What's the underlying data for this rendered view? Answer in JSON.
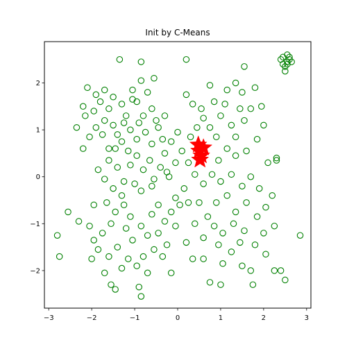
{
  "chart_data": {
    "type": "scatter",
    "title": "Init by C-Means",
    "xlabel": "",
    "ylabel": "",
    "xlim": [
      -3.1,
      3.1
    ],
    "ylim": [
      -2.8,
      2.88
    ],
    "xticks": [
      -3,
      -2,
      -1,
      0,
      1,
      2,
      3
    ],
    "yticks": [
      -2,
      -1,
      0,
      1,
      2
    ],
    "grid": false,
    "colors": {
      "points": "#008000",
      "centers": "#ff0000"
    },
    "series": [
      {
        "marker": "open-circle",
        "points": [
          [
            -2.1,
            1.9
          ],
          [
            -1.9,
            1.75
          ],
          [
            -1.8,
            1.6
          ],
          [
            -2.2,
            1.5
          ],
          [
            -2.35,
            1.05
          ],
          [
            -2.2,
            0.6
          ],
          [
            -2.15,
            1.3
          ],
          [
            -1.95,
            1.4
          ],
          [
            -1.7,
            1.2
          ],
          [
            -1.6,
            1.45
          ],
          [
            -1.5,
            1.1
          ],
          [
            -1.4,
            0.9
          ],
          [
            -1.6,
            0.6
          ],
          [
            -1.75,
            0.9
          ],
          [
            -1.9,
            1.05
          ],
          [
            -2.05,
            0.85
          ],
          [
            -1.5,
            1.7
          ],
          [
            -1.3,
            1.55
          ],
          [
            -1.2,
            1.3
          ],
          [
            -1.1,
            1.0
          ],
          [
            -1.3,
            0.75
          ],
          [
            -1.45,
            0.6
          ],
          [
            -1.05,
            1.65
          ],
          [
            -1.35,
            2.5
          ],
          [
            -0.85,
            2.05
          ],
          [
            -0.85,
            2.45
          ],
          [
            -0.7,
            1.8
          ],
          [
            -0.6,
            1.45
          ],
          [
            -0.8,
            1.3
          ],
          [
            -0.9,
            1.15
          ],
          [
            -0.75,
            0.95
          ],
          [
            -0.6,
            0.7
          ],
          [
            -0.95,
            0.8
          ],
          [
            -1.15,
            0.55
          ],
          [
            -0.45,
            1.05
          ],
          [
            -0.3,
            1.3
          ],
          [
            -0.35,
            0.8
          ],
          [
            -0.55,
            2.1
          ],
          [
            -0.95,
            1.6
          ],
          [
            -1.7,
            1.85
          ],
          [
            -1.85,
            0.15
          ],
          [
            -1.6,
            0.35
          ],
          [
            -1.4,
            0.2
          ],
          [
            -1.7,
            -0.05
          ],
          [
            -1.5,
            -0.25
          ],
          [
            -1.25,
            -0.1
          ],
          [
            -1.1,
            0.25
          ],
          [
            -0.95,
            0.45
          ],
          [
            -0.8,
            0.15
          ],
          [
            -0.65,
            0.35
          ],
          [
            -0.55,
            -0.05
          ],
          [
            -0.4,
            0.2
          ],
          [
            -0.3,
            0.5
          ],
          [
            -0.15,
            0.75
          ],
          [
            0.0,
            0.95
          ],
          [
            0.1,
            0.55
          ],
          [
            -0.05,
            0.3
          ],
          [
            -0.25,
            0.1
          ],
          [
            -0.6,
            -0.2
          ],
          [
            -0.85,
            -0.3
          ],
          [
            -1.0,
            -0.15
          ],
          [
            -1.3,
            -0.4
          ],
          [
            -1.95,
            -0.6
          ],
          [
            -1.65,
            -0.55
          ],
          [
            -1.45,
            -0.75
          ],
          [
            -1.25,
            -0.6
          ],
          [
            -1.1,
            -0.85
          ],
          [
            -1.55,
            -1.0
          ],
          [
            -1.75,
            -1.2
          ],
          [
            -1.95,
            -1.35
          ],
          [
            -2.05,
            -1.05
          ],
          [
            -2.3,
            -0.95
          ],
          [
            -2.55,
            -0.75
          ],
          [
            -2.8,
            -1.25
          ],
          [
            -2.75,
            -1.7
          ],
          [
            -2.0,
            -1.75
          ],
          [
            -1.85,
            -1.55
          ],
          [
            -1.6,
            -1.7
          ],
          [
            -1.4,
            -1.5
          ],
          [
            -1.7,
            -2.05
          ],
          [
            -1.55,
            -2.3
          ],
          [
            -1.45,
            -2.4
          ],
          [
            -1.3,
            -1.95
          ],
          [
            -1.15,
            -1.75
          ],
          [
            -1.05,
            -1.35
          ],
          [
            -0.85,
            -1.05
          ],
          [
            -0.7,
            -1.25
          ],
          [
            -0.6,
            -0.8
          ],
          [
            -0.45,
            -0.6
          ],
          [
            -0.3,
            -0.95
          ],
          [
            -0.15,
            -0.75
          ],
          [
            -0.05,
            -1.05
          ],
          [
            -0.55,
            -1.55
          ],
          [
            -0.8,
            -1.7
          ],
          [
            -0.95,
            -1.9
          ],
          [
            -0.7,
            -2.05
          ],
          [
            -0.9,
            -2.35
          ],
          [
            -0.85,
            -2.55
          ],
          [
            -0.25,
            -1.45
          ],
          [
            -0.15,
            -2.05
          ],
          [
            -0.35,
            -1.7
          ],
          [
            0.2,
            2.5
          ],
          [
            0.2,
            1.75
          ],
          [
            0.35,
            1.55
          ],
          [
            0.55,
            1.45
          ],
          [
            0.75,
            1.95
          ],
          [
            0.6,
            1.25
          ],
          [
            0.45,
            1.05
          ],
          [
            0.75,
            1.05
          ],
          [
            0.9,
            0.85
          ],
          [
            1.0,
            1.3
          ],
          [
            1.1,
            1.55
          ],
          [
            1.15,
            1.85
          ],
          [
            1.25,
            1.1
          ],
          [
            1.35,
            0.85
          ],
          [
            1.55,
            1.2
          ],
          [
            1.7,
            1.45
          ],
          [
            1.5,
            1.8
          ],
          [
            1.35,
            2.0
          ],
          [
            1.55,
            2.35
          ],
          [
            1.8,
            1.9
          ],
          [
            1.95,
            1.5
          ],
          [
            2.0,
            1.1
          ],
          [
            1.85,
            0.8
          ],
          [
            1.6,
            0.55
          ],
          [
            1.35,
            0.45
          ],
          [
            1.15,
            0.6
          ],
          [
            0.95,
            0.35
          ],
          [
            2.1,
            0.3
          ],
          [
            2.3,
            0.4
          ],
          [
            0.3,
            0.85
          ],
          [
            0.25,
            0.3
          ],
          [
            0.4,
            0.05
          ],
          [
            0.6,
            -0.15
          ],
          [
            0.8,
            0.05
          ],
          [
            1.0,
            -0.1
          ],
          [
            1.25,
            0.05
          ],
          [
            1.5,
            -0.2
          ],
          [
            1.7,
            0.0
          ],
          [
            1.9,
            -0.25
          ],
          [
            0.15,
            -0.25
          ],
          [
            0.25,
            -0.55
          ],
          [
            0.5,
            -0.55
          ],
          [
            0.7,
            -0.85
          ],
          [
            0.9,
            -0.55
          ],
          [
            1.15,
            -0.4
          ],
          [
            1.35,
            -0.75
          ],
          [
            1.6,
            -0.55
          ],
          [
            1.85,
            -0.85
          ],
          [
            2.05,
            -0.65
          ],
          [
            2.25,
            -1.05
          ],
          [
            2.0,
            -1.2
          ],
          [
            1.8,
            -1.45
          ],
          [
            1.55,
            -1.15
          ],
          [
            1.3,
            -1.0
          ],
          [
            1.05,
            -1.2
          ],
          [
            0.85,
            -1.05
          ],
          [
            0.6,
            -1.3
          ],
          [
            0.4,
            -1.0
          ],
          [
            0.2,
            -1.4
          ],
          [
            0.35,
            -1.75
          ],
          [
            0.6,
            -1.75
          ],
          [
            0.75,
            -2.25
          ],
          [
            1.0,
            -2.3
          ],
          [
            1.05,
            -1.85
          ],
          [
            1.25,
            -1.6
          ],
          [
            1.5,
            -1.9
          ],
          [
            1.7,
            -2.0
          ],
          [
            1.75,
            -2.3
          ],
          [
            2.05,
            -1.65
          ],
          [
            2.25,
            -2.0
          ],
          [
            2.4,
            -2.0
          ],
          [
            2.5,
            -2.2
          ],
          [
            2.85,
            -1.25
          ],
          [
            2.2,
            -0.4
          ],
          [
            2.3,
            0.35
          ],
          [
            2.55,
            2.45
          ],
          [
            2.45,
            2.55
          ],
          [
            2.6,
            2.5
          ],
          [
            2.5,
            2.35
          ],
          [
            2.65,
            2.45
          ],
          [
            2.55,
            2.6
          ],
          [
            2.4,
            2.5
          ],
          [
            2.5,
            2.25
          ],
          [
            2.55,
            2.4
          ],
          [
            2.6,
            2.55
          ],
          [
            2.45,
            2.4
          ],
          [
            -0.05,
            -0.45
          ],
          [
            -0.2,
            0.0
          ],
          [
            -1.05,
            1.85
          ],
          [
            -1.25,
            1.15
          ],
          [
            -0.5,
            1.2
          ],
          [
            0.85,
            1.6
          ],
          [
            1.45,
            1.45
          ],
          [
            0.05,
            -0.6
          ],
          [
            -0.45,
            -1.2
          ],
          [
            0.95,
            -1.45
          ],
          [
            1.45,
            -1.4
          ],
          [
            -1.2,
            -1.1
          ],
          [
            0.55,
            0.4
          ]
        ]
      },
      {
        "marker": "star",
        "points": [
          [
            0.5,
            0.55
          ],
          [
            0.55,
            0.45
          ],
          [
            0.6,
            0.62
          ],
          [
            0.52,
            0.36
          ],
          [
            0.48,
            0.68
          ]
        ]
      }
    ]
  }
}
